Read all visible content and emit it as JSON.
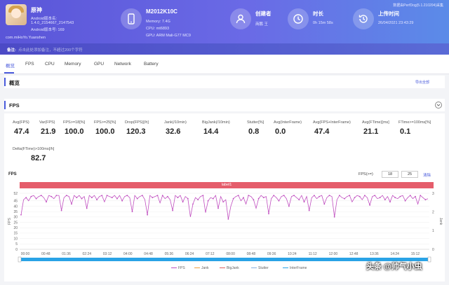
{
  "header": {
    "version": "数据由PerfDog(5.1.210204)采集",
    "app": {
      "name": "原神",
      "android_version_label": "Android版本名:",
      "android_version": "1.4.0_2154667_2147543",
      "android_code_label": "Android版本号: 169",
      "package": "com.miHoYo.Yuanshen"
    },
    "device": {
      "model": "M2012K10C",
      "memory": "Memory: 7.4G",
      "cpu": "CPU: mt6893",
      "gpu": "GPU: ARM Mali-G77 MC9"
    },
    "creator": {
      "title": "创建者",
      "value": "商鹏 王"
    },
    "duration": {
      "title": "时长",
      "value": "0h 15m 58s"
    },
    "upload": {
      "title": "上传时间",
      "value": "26/04/2021 23:43:29"
    },
    "note": {
      "label": "备注:",
      "placeholder": "点击此处添加备注，不超过200个字符"
    }
  },
  "tabs": [
    "概览",
    "FPS",
    "CPU",
    "Memory",
    "GPU",
    "Network",
    "Battery"
  ],
  "overview": {
    "title": "概览",
    "export": "导出全部"
  },
  "fps_section": {
    "title": "FPS",
    "metrics": [
      {
        "label": "Avg(FPS)",
        "value": "47.4"
      },
      {
        "label": "Var(FPS)",
        "value": "21.9"
      },
      {
        "label": "FPS>=18[%]",
        "value": "100.0"
      },
      {
        "label": "FPS>=25[%]",
        "value": "100.0"
      },
      {
        "label": "Drop(FPS)[/h]",
        "value": "120.3"
      },
      {
        "label": "Jank(/10min)",
        "value": "32.6"
      },
      {
        "label": "BigJank(/10min)",
        "value": "14.4"
      },
      {
        "label": "Stutter[%]",
        "value": "0.8"
      },
      {
        "label": "Avg(InterFrame)",
        "value": "0.0"
      },
      {
        "label": "Avg(FPS+InterFrame)",
        "value": "47.4"
      },
      {
        "label": "Avg(FTime)[ms]",
        "value": "21.1"
      },
      {
        "label": "FTime>=100ms[%]",
        "value": "0.1"
      },
      {
        "label": "Delta(FTime)>100ms[/h]",
        "value": "82.7"
      }
    ],
    "chart": {
      "title": "FPS",
      "filter_label": "FPS(>=)",
      "filter_values": [
        "18",
        "25"
      ],
      "clear": "清除",
      "label_bar": "label1",
      "y_left_label": "FPS",
      "y_right_label": "Jank"
    }
  },
  "chart_data": {
    "type": "line",
    "title": "FPS",
    "ylabel": "FPS",
    "y2label": "Jank",
    "ylim": [
      0,
      52
    ],
    "y_ticks": [
      0,
      5,
      10,
      15,
      20,
      25,
      30,
      35,
      40,
      45,
      52
    ],
    "y2lim": [
      0,
      3
    ],
    "y2_ticks": [
      0,
      1,
      2,
      3
    ],
    "x_ticks": [
      "00:00",
      "00:48",
      "01:36",
      "02:24",
      "03:12",
      "04:00",
      "04:48",
      "05:36",
      "06:24",
      "07:12",
      "08:00",
      "08:48",
      "09:36",
      "10:24",
      "11:12",
      "12:00",
      "12:48",
      "13:36",
      "14:24",
      "15:12"
    ],
    "x_seconds_max": 958,
    "legend": [
      "FPS",
      "Jank",
      "BigJank",
      "Stutter",
      "InterFrame"
    ],
    "legend_position": "bottom",
    "series": [
      {
        "name": "FPS",
        "color": "#c04fc0",
        "values": [
          32,
          46,
          48,
          45,
          49,
          50,
          47,
          49,
          50,
          48,
          44,
          50,
          49,
          47,
          50,
          50,
          36,
          48,
          50,
          49,
          42,
          50,
          48,
          50,
          47,
          49,
          38,
          50,
          48,
          50,
          46,
          49,
          50,
          44,
          50,
          49,
          48,
          50,
          47,
          50,
          45,
          49,
          50,
          48,
          35,
          50,
          47,
          49,
          50,
          46,
          32,
          50,
          48,
          49,
          50,
          43,
          50,
          47,
          49,
          46,
          36,
          50,
          48,
          50,
          44,
          49,
          47,
          30,
          42,
          48,
          46,
          49,
          50,
          34,
          45,
          48,
          47,
          50,
          38,
          49,
          44,
          46,
          28,
          40,
          47,
          49,
          50,
          45,
          48,
          42,
          50,
          49,
          46,
          38,
          47,
          50,
          48,
          49,
          33,
          47,
          50,
          48,
          45,
          49,
          50,
          47,
          40,
          49,
          50,
          48,
          46,
          50,
          44,
          49,
          36,
          48,
          50,
          47,
          49,
          50,
          42,
          48,
          50,
          49,
          30,
          46,
          50,
          48,
          47,
          49,
          50,
          44,
          48,
          50,
          49,
          46,
          50,
          48,
          41,
          49,
          50,
          47,
          48,
          50,
          46,
          49,
          44,
          50,
          48,
          47,
          49,
          50,
          45,
          48,
          50,
          47,
          49,
          42,
          50,
          48,
          46,
          47
        ]
      }
    ]
  }
}
